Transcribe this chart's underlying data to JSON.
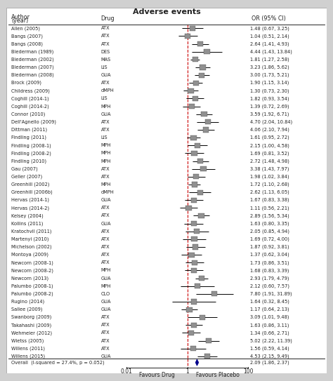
{
  "title": "Adverse events",
  "col_author": "Author\n(year)",
  "col_drug": "Drug",
  "col_or": "OR (95% CI)",
  "xlabel_left": "Favours Drug",
  "xlabel_right": "Favours Placebo",
  "overall_label": "Overall  (I-squared = 27.4%, p = 0.052)",
  "studies": [
    {
      "author": "Allen (2005)",
      "drug": "ATX",
      "or": 1.48,
      "lo": 0.67,
      "hi": 3.25
    },
    {
      "author": "Bangs (2007)",
      "drug": "ATX",
      "or": 1.04,
      "lo": 0.51,
      "hi": 2.14
    },
    {
      "author": "Bangs (2008)",
      "drug": "ATX",
      "or": 2.64,
      "lo": 1.41,
      "hi": 4.93
    },
    {
      "author": "Biederman (1989)",
      "drug": "DES",
      "or": 4.44,
      "lo": 1.43,
      "hi": 13.84
    },
    {
      "author": "Biederman (2002)",
      "drug": "MAS",
      "or": 1.81,
      "lo": 1.27,
      "hi": 2.58
    },
    {
      "author": "Biederman (2007)",
      "drug": "LIS",
      "or": 3.23,
      "lo": 1.86,
      "hi": 5.62
    },
    {
      "author": "Biederman (2008)",
      "drug": "GUA",
      "or": 3.0,
      "lo": 1.73,
      "hi": 5.21
    },
    {
      "author": "Brock (2009)",
      "drug": "ATX",
      "or": 1.9,
      "lo": 1.15,
      "hi": 3.14
    },
    {
      "author": "Childress (2009)",
      "drug": "dMPH",
      "or": 1.3,
      "lo": 0.73,
      "hi": 2.3
    },
    {
      "author": "Coghill (2014-1)",
      "drug": "LIS",
      "or": 1.82,
      "lo": 0.93,
      "hi": 3.54
    },
    {
      "author": "Coghill (2014-2)",
      "drug": "MPH",
      "or": 1.39,
      "lo": 0.72,
      "hi": 2.69
    },
    {
      "author": "Connor (2010)",
      "drug": "GUA",
      "or": 3.59,
      "lo": 1.92,
      "hi": 6.71
    },
    {
      "author": "Dell'Agnello (2009)",
      "drug": "ATX",
      "or": 4.7,
      "lo": 2.04,
      "hi": 10.84
    },
    {
      "author": "Dittman (2011)",
      "drug": "ATX",
      "or": 4.06,
      "lo": 2.1,
      "hi": 7.94
    },
    {
      "author": "Findling (2011)",
      "drug": "LIS",
      "or": 1.61,
      "lo": 0.95,
      "hi": 2.72
    },
    {
      "author": "Findling (2008-1)",
      "drug": "MPH",
      "or": 2.15,
      "lo": 1.0,
      "hi": 4.58
    },
    {
      "author": "Findling (2008-2)",
      "drug": "MPH",
      "or": 1.69,
      "lo": 0.81,
      "hi": 3.52
    },
    {
      "author": "Findling (2010)",
      "drug": "MPH",
      "or": 2.72,
      "lo": 1.48,
      "hi": 4.98
    },
    {
      "author": "Gau (2007)",
      "drug": "ATX",
      "or": 3.38,
      "lo": 1.43,
      "hi": 7.97
    },
    {
      "author": "Geller (2007)",
      "drug": "ATX",
      "or": 1.98,
      "lo": 1.02,
      "hi": 3.84
    },
    {
      "author": "Greenhill (2002)",
      "drug": "MPH",
      "or": 1.72,
      "lo": 1.1,
      "hi": 2.68
    },
    {
      "author": "Greenhill (2006b)",
      "drug": "dMPH",
      "or": 2.62,
      "lo": 1.13,
      "hi": 6.05
    },
    {
      "author": "Hervas (2014-1)",
      "drug": "GUA",
      "or": 1.67,
      "lo": 0.83,
      "hi": 3.38
    },
    {
      "author": "Hervas (2014-2)",
      "drug": "ATX",
      "or": 1.11,
      "lo": 0.56,
      "hi": 2.21
    },
    {
      "author": "Kelsey (2004)",
      "drug": "ATX",
      "or": 2.89,
      "lo": 1.56,
      "hi": 5.34
    },
    {
      "author": "Kollins (2011)",
      "drug": "GUA",
      "or": 1.63,
      "lo": 0.8,
      "hi": 3.35
    },
    {
      "author": "Kratochvil (2011)",
      "drug": "ATX",
      "or": 2.05,
      "lo": 0.85,
      "hi": 4.94
    },
    {
      "author": "Martenyi (2010)",
      "drug": "ATX",
      "or": 1.69,
      "lo": 0.72,
      "hi": 4.0
    },
    {
      "author": "Michelson (2002)",
      "drug": "ATX",
      "or": 1.87,
      "lo": 0.92,
      "hi": 3.81
    },
    {
      "author": "Montoya (2009)",
      "drug": "ATX",
      "or": 1.37,
      "lo": 0.62,
      "hi": 3.04
    },
    {
      "author": "Newcorn (2008-1)",
      "drug": "ATX",
      "or": 1.73,
      "lo": 0.86,
      "hi": 3.51
    },
    {
      "author": "Newcorn (2008-2)",
      "drug": "MPH",
      "or": 1.68,
      "lo": 0.83,
      "hi": 3.39
    },
    {
      "author": "Newcorn (2013)",
      "drug": "GUA",
      "or": 2.93,
      "lo": 1.79,
      "hi": 4.79
    },
    {
      "author": "Palumbo (2008-1)",
      "drug": "MPH",
      "or": 2.12,
      "lo": 0.6,
      "hi": 7.57
    },
    {
      "author": "Palumbo (2008-2)",
      "drug": "CLO",
      "or": 7.8,
      "lo": 1.91,
      "hi": 31.89
    },
    {
      "author": "Rugino (2014)",
      "drug": "GUA",
      "or": 1.64,
      "lo": 0.32,
      "hi": 8.45
    },
    {
      "author": "Sallee (2009)",
      "drug": "GUA",
      "or": 1.17,
      "lo": 0.64,
      "hi": 2.13
    },
    {
      "author": "Swanborg (2009)",
      "drug": "ATX",
      "or": 3.09,
      "lo": 1.01,
      "hi": 9.48
    },
    {
      "author": "Takahashi (2009)",
      "drug": "ATX",
      "or": 1.63,
      "lo": 0.86,
      "hi": 3.11
    },
    {
      "author": "Wehmeier (2012)",
      "drug": "ATX",
      "or": 1.34,
      "lo": 0.66,
      "hi": 2.71
    },
    {
      "author": "Wietss (2005)",
      "drug": "ATX",
      "or": 5.02,
      "lo": 2.22,
      "hi": 11.39
    },
    {
      "author": "Willens (2011)",
      "drug": "ATX",
      "or": 1.56,
      "lo": 0.59,
      "hi": 4.14
    },
    {
      "author": "Willens (2015)",
      "drug": "GUA",
      "or": 4.53,
      "lo": 2.15,
      "hi": 9.49
    }
  ],
  "overall": {
    "or": 2.09,
    "lo": 1.86,
    "hi": 2.37
  },
  "bg_color": "#d0d0d0",
  "panel_color": "#ffffff",
  "ref_line_color": "#cc0000",
  "diamond_color": "#00008b",
  "box_color": "#909090",
  "ci_color": "#000000",
  "tick_vals": [
    0.01,
    1,
    100
  ],
  "tick_labels": [
    "0.01",
    "1",
    "100"
  ],
  "log_min": -2,
  "log_max": 2
}
